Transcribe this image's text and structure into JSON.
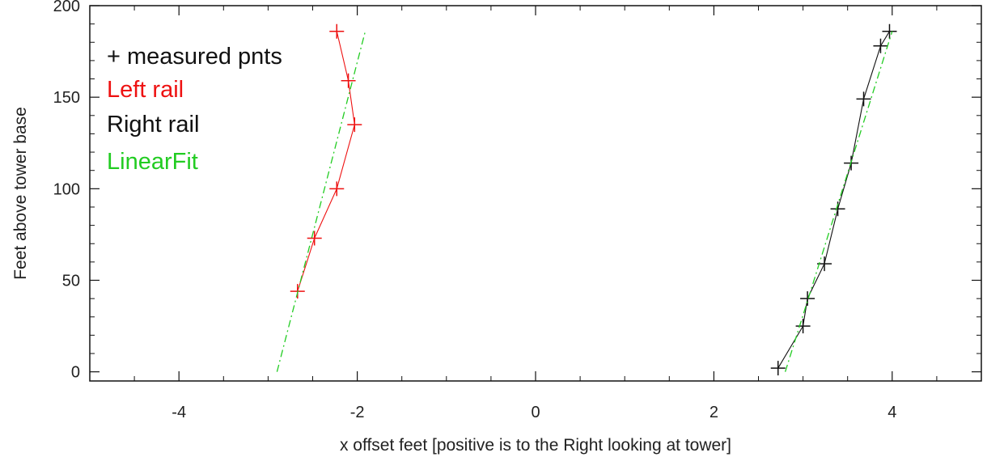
{
  "chart_data": {
    "type": "line",
    "title": "",
    "xlabel": "x offset feet [positive is to the  Right looking at tower]",
    "ylabel": "Feet above tower base",
    "xlim": [
      -5,
      5
    ],
    "ylim": [
      -5,
      200
    ],
    "xticks": [
      -4,
      -2,
      0,
      2,
      4
    ],
    "yticks": [
      0,
      50,
      100,
      150,
      200
    ],
    "grid": false,
    "legend": {
      "placement": "top-left",
      "entries": [
        {
          "text": "+ measured pnts",
          "color": "#111111"
        },
        {
          "text": "Left rail",
          "color": "#ee1111"
        },
        {
          "text": "Right rail",
          "color": "#111111"
        },
        {
          "text": "LinearFit",
          "color": "#22cc22"
        }
      ]
    },
    "series": [
      {
        "name": "Left rail",
        "color": "#ee1111",
        "marker": "plus",
        "line": "solid",
        "x": [
          -2.67,
          -2.48,
          -2.23,
          -2.03,
          -2.1,
          -2.23
        ],
        "y": [
          44,
          73,
          100,
          135,
          159,
          186
        ]
      },
      {
        "name": "Right rail",
        "color": "#111111",
        "marker": "plus",
        "line": "solid",
        "x": [
          2.72,
          3.0,
          3.05,
          3.24,
          3.39,
          3.54,
          3.68,
          3.87,
          3.97
        ],
        "y": [
          2,
          25,
          40,
          59,
          89,
          114,
          149,
          178,
          186
        ]
      },
      {
        "name": "LinearFit",
        "color": "#22cc22",
        "line": "dashdot",
        "x": [
          -2.9,
          -1.91
        ],
        "y": [
          0,
          186
        ]
      },
      {
        "name": "LinearFit",
        "color": "#22cc22",
        "line": "dashdot",
        "x": [
          2.8,
          4.0
        ],
        "y": [
          0,
          186
        ]
      }
    ]
  }
}
